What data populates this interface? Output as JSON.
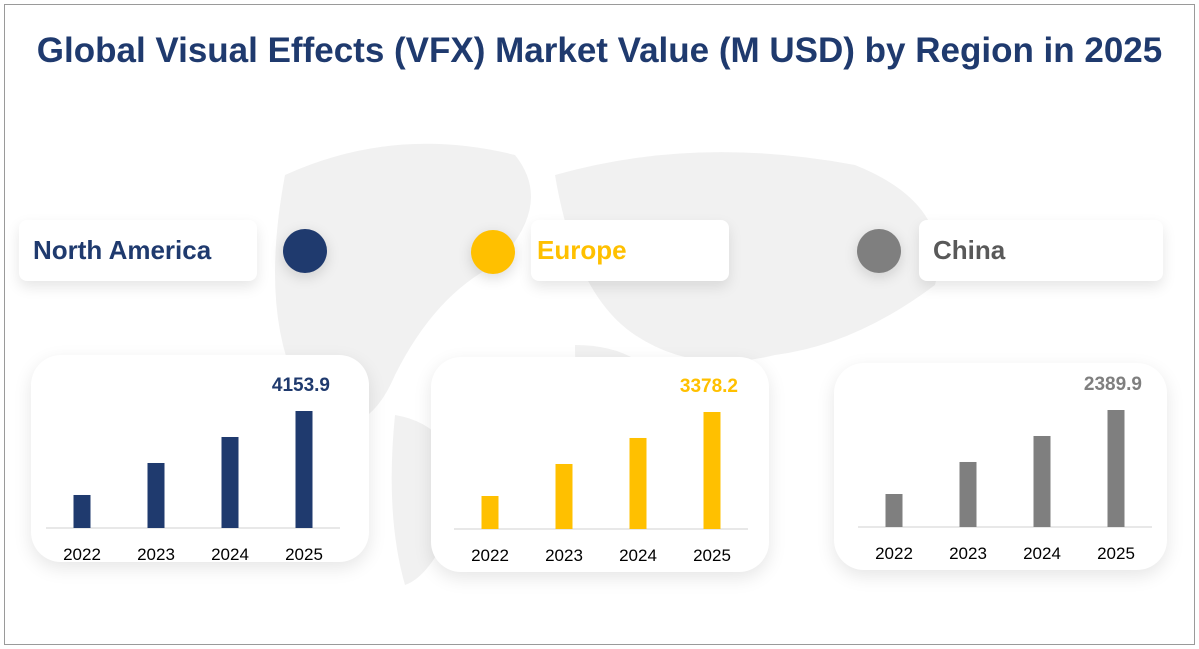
{
  "title": "Global Visual Effects (VFX) Market Value (M USD) by Region in 2025",
  "chart_data": [
    {
      "type": "bar",
      "title": "North America",
      "color": "#1f3a6e",
      "categories": [
        "2022",
        "2023",
        "2024",
        "2025"
      ],
      "values": [
        1172,
        2308,
        3231,
        4153.9
      ],
      "data_labels": {
        "2025": "4153.9"
      }
    },
    {
      "type": "bar",
      "title": "Europe",
      "color": "#ffc000",
      "categories": [
        "2022",
        "2023",
        "2024",
        "2025"
      ],
      "values": [
        953,
        1877,
        2628,
        3378.2
      ],
      "data_labels": {
        "2025": "3378.2"
      }
    },
    {
      "type": "bar",
      "title": "China",
      "color": "#7f7f7f",
      "categories": [
        "2022",
        "2023",
        "2024",
        "2025"
      ],
      "values": [
        674,
        1328,
        1859,
        2389.9
      ],
      "data_labels": {
        "2025": "2389.9"
      }
    }
  ]
}
